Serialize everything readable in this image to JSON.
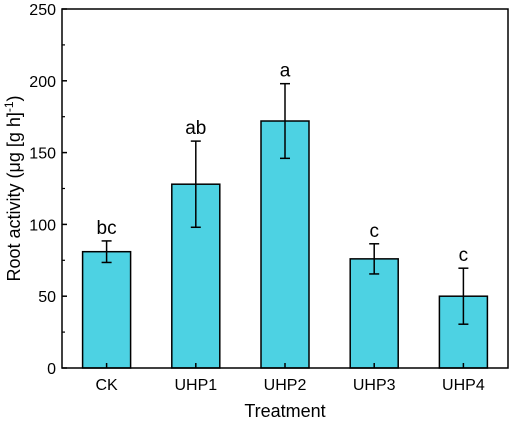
{
  "chart_data": {
    "type": "bar",
    "title": "",
    "xlabel": "Treatment",
    "ylabel": "Root activity (μg [g h]",
    "ylabel_superscript": "-1",
    "ylabel_close": ")",
    "categories": [
      "CK",
      "UHP1",
      "UHP2",
      "UHP3",
      "UHP4"
    ],
    "values": [
      81,
      128,
      172,
      76,
      50
    ],
    "errors": [
      7.5,
      30,
      26,
      10.5,
      19.5
    ],
    "significance_labels": [
      "bc",
      "ab",
      "a",
      "c",
      "c"
    ],
    "ylim": [
      0,
      250
    ],
    "yticks": [
      0,
      50,
      100,
      150,
      200,
      250
    ],
    "grid": false,
    "legend": "none",
    "bar_color": "#4dd2e3",
    "edge_color": "#000000"
  }
}
